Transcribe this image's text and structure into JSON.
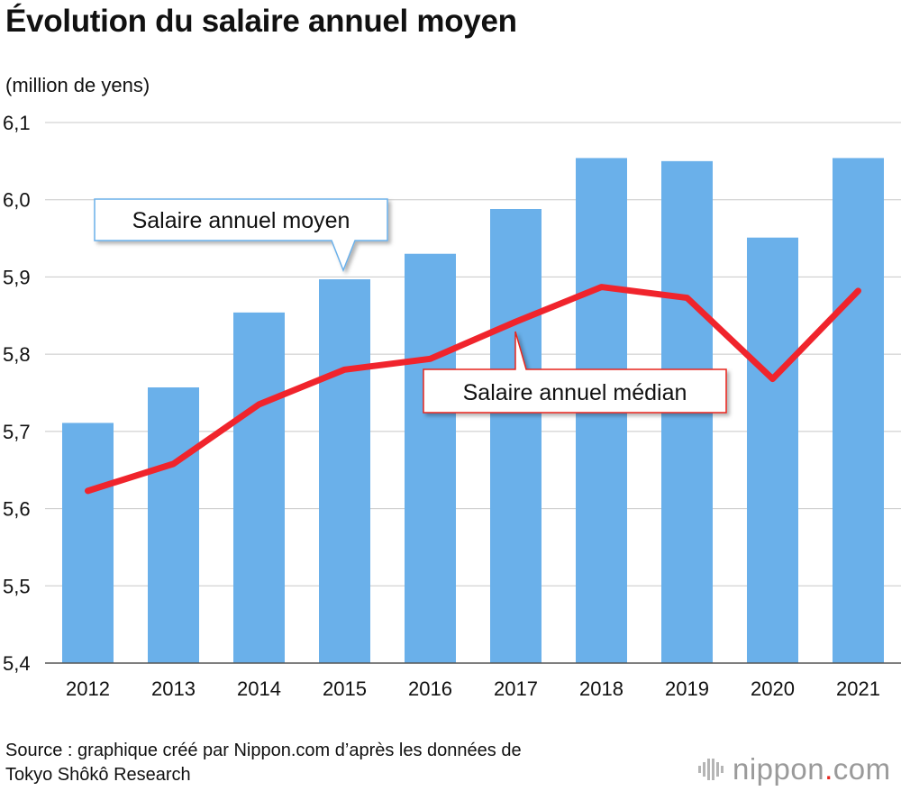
{
  "title": "Évolution du salaire annuel moyen",
  "unit_label": "(million de yens)",
  "source": {
    "line1": "Source : graphique créé par Nippon.com d’après les données de",
    "line2": "Tokyo Shôkô Research"
  },
  "brand": {
    "name": "nippon",
    "dot": ".",
    "tld": "com",
    "accent_color": "#e8261f",
    "text_color": "#9a9a9a"
  },
  "chart_data": {
    "type": "bar",
    "categories": [
      "2012",
      "2013",
      "2014",
      "2015",
      "2016",
      "2017",
      "2018",
      "2019",
      "2020",
      "2021"
    ],
    "ylim": [
      5.4,
      6.1
    ],
    "yticks": [
      "5,4",
      "5,5",
      "5,6",
      "5,7",
      "5,8",
      "5,9",
      "6,0",
      "6,1"
    ],
    "ylabel": "(million de yens)",
    "xlabel": "",
    "grid": true,
    "series": [
      {
        "name": "Salaire annuel moyen",
        "kind": "bar",
        "color": "#6ab0ea",
        "values": [
          5.711,
          5.757,
          5.854,
          5.897,
          5.93,
          5.988,
          6.054,
          6.05,
          5.951,
          6.054
        ]
      },
      {
        "name": "Salaire annuel médian",
        "kind": "line",
        "color": "#f0242c",
        "values": [
          5.623,
          5.658,
          5.735,
          5.78,
          5.794,
          5.842,
          5.887,
          5.873,
          5.768,
          5.882
        ]
      }
    ],
    "annotations": [
      {
        "text": "Salaire annuel moyen",
        "series": "Salaire annuel moyen",
        "border_color": "#6ab0ea"
      },
      {
        "text": "Salaire annuel médian",
        "series": "Salaire annuel médian",
        "border_color": "#e8261f"
      }
    ]
  }
}
